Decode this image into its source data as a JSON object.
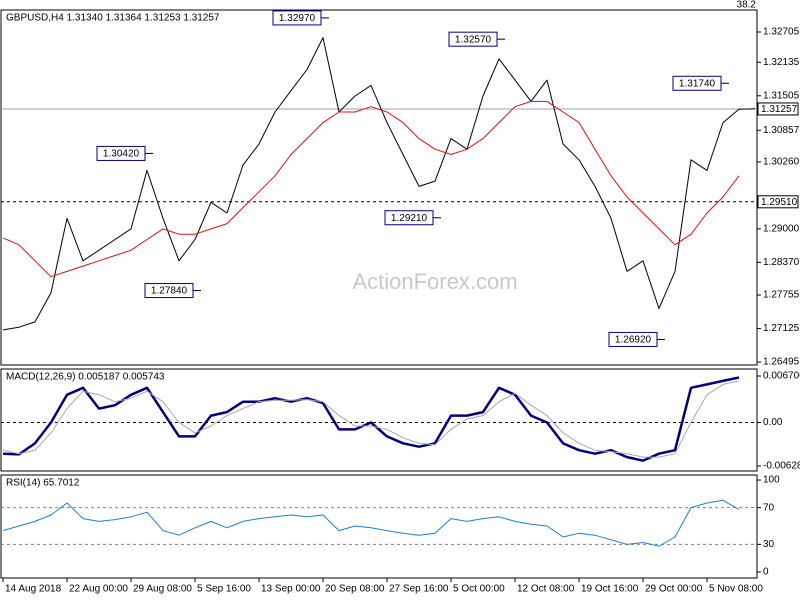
{
  "chart_data": [
    {
      "type": "line",
      "title": "GBPUSD,H4  1.31340 1.31364 1.31253 1.31257",
      "watermark": "ActionForex.com",
      "fibo_label": "38.2",
      "categories": [
        "14 Aug 2018",
        null,
        null,
        null,
        "22 Aug 00:00",
        null,
        null,
        null,
        "29 Aug 08:00",
        null,
        null,
        null,
        "5 Sep 16:00",
        null,
        null,
        null,
        "13 Sep 00:00",
        null,
        null,
        null,
        "20 Sep 08:00",
        null,
        null,
        null,
        "27 Sep 16:00",
        null,
        null,
        null,
        "5 Oct 00:00",
        null,
        null,
        null,
        "12 Oct 08:00",
        null,
        null,
        null,
        "19 Oct 16:00",
        null,
        null,
        null,
        "29 Oct 00:00",
        null,
        null,
        null,
        "5 Nov 08:00",
        null,
        null,
        null
      ],
      "series": [
        {
          "name": "Close",
          "color": "#000000",
          "width": 1,
          "values": [
            1.271,
            1.2715,
            1.2725,
            1.278,
            1.292,
            1.284,
            1.286,
            1.288,
            1.29,
            1.301,
            1.292,
            1.284,
            1.288,
            1.295,
            1.293,
            1.302,
            1.306,
            1.312,
            1.316,
            1.32,
            1.326,
            1.312,
            1.315,
            1.317,
            1.31,
            1.304,
            1.298,
            1.299,
            1.307,
            1.305,
            1.315,
            1.322,
            1.318,
            1.314,
            1.318,
            1.306,
            1.303,
            1.298,
            1.292,
            1.282,
            1.284,
            1.275,
            1.282,
            1.303,
            1.301,
            1.31,
            1.3125,
            1.3126
          ]
        },
        {
          "name": "MA",
          "color": "#e01010",
          "width": 1,
          "values": [
            1.2883,
            1.287,
            1.284,
            1.281,
            1.282,
            1.283,
            1.284,
            1.285,
            1.286,
            1.288,
            1.29,
            1.289,
            1.289,
            1.29,
            1.291,
            1.294,
            1.297,
            1.3,
            1.304,
            1.307,
            1.31,
            1.312,
            1.312,
            1.313,
            1.312,
            1.31,
            1.307,
            1.305,
            1.304,
            1.305,
            1.307,
            1.31,
            1.313,
            1.314,
            1.314,
            1.312,
            1.31,
            1.305,
            1.3,
            1.296,
            1.293,
            1.29,
            1.287,
            1.289,
            1.293,
            1.296,
            1.3,
            null
          ]
        }
      ],
      "ylim": [
        1.26439,
        1.33119
      ],
      "yticks": [
        {
          "value": 1.32705,
          "label": "1.32705"
        },
        1.32135,
        1.31505,
        1.30857,
        {
          "value": 1.3026,
          "label": "1.30260"
        },
        {
          "value": 1.29,
          "label": "1.29000"
        },
        {
          "value": 1.2837,
          "label": "1.28370"
        },
        1.27755,
        1.27125,
        1.26495
      ],
      "levels": [
        {
          "value": 1.31257,
          "style": "solid",
          "color": "#a0a0a0",
          "axis_tag": true
        },
        {
          "value": 1.2951,
          "label": "1.29510",
          "style": "dashed",
          "color": "#000000",
          "axis_tag": true
        }
      ],
      "annotations": [
        {
          "value": 1.3297,
          "label": "1.32970",
          "index": 20
        },
        {
          "value": 1.3257,
          "label": "1.32570",
          "index": 31
        },
        {
          "value": 1.3174,
          "label": "1.31740",
          "index": 45
        },
        {
          "value": 1.3042,
          "label": "1.30420",
          "index": 9
        },
        {
          "value": 1.2921,
          "label": "1.29210",
          "index": 27
        },
        {
          "value": 1.2784,
          "label": "1.27840",
          "index": 12
        },
        {
          "value": 1.2692,
          "label": "1.26920",
          "index": 41
        }
      ]
    },
    {
      "type": "line",
      "title": "MACD(12,26,9) 0.005187 0.005743",
      "series": [
        {
          "name": "MACD",
          "color": "#000080",
          "width": 2.5,
          "values": [
            -0.0045,
            -0.0046,
            -0.003,
            0.0,
            0.004,
            0.005,
            0.002,
            0.0025,
            0.004,
            0.005,
            0.0015,
            -0.002,
            -0.002,
            0.001,
            0.0015,
            0.003,
            0.003,
            0.0035,
            0.003,
            0.0035,
            0.0028,
            -0.001,
            -0.001,
            0.0,
            -0.002,
            -0.003,
            -0.0035,
            -0.003,
            0.001,
            0.001,
            0.0015,
            0.005,
            0.004,
            0.001,
            0.0,
            -0.003,
            -0.004,
            -0.0045,
            -0.004,
            -0.005,
            -0.0055,
            -0.0045,
            -0.004,
            0.005,
            0.0055,
            0.006,
            0.0065,
            null
          ]
        },
        {
          "name": "Signal",
          "color": "#a8a8a8",
          "width": 1,
          "values": [
            -0.004,
            -0.0045,
            -0.004,
            -0.0015,
            0.002,
            0.0045,
            0.004,
            0.003,
            0.0035,
            0.0045,
            0.003,
            0.0,
            -0.0015,
            -0.0005,
            0.001,
            0.002,
            0.003,
            0.0032,
            0.0032,
            0.0033,
            0.003,
            0.001,
            -0.0005,
            -0.0005,
            -0.001,
            -0.0022,
            -0.003,
            -0.0032,
            -0.001,
            0.0005,
            0.001,
            0.003,
            0.0042,
            0.0025,
            0.001,
            -0.0015,
            -0.003,
            -0.004,
            -0.0042,
            -0.0045,
            -0.005,
            -0.005,
            -0.0045,
            0.0,
            0.004,
            0.0055,
            0.006,
            null
          ]
        }
      ],
      "ylim": [
        -0.007,
        0.00772
      ],
      "yticks": [
        0.006706,
        {
          "value": 0,
          "label": "0.00"
        },
        -0.00628
      ],
      "levels": [
        {
          "value": 0,
          "style": "dashed",
          "color": "#000000"
        }
      ]
    },
    {
      "type": "line",
      "title": "RSI(14) 65.7012",
      "series": [
        {
          "name": "RSI",
          "color": "#1e7fd8",
          "width": 1,
          "values": [
            45,
            50,
            55,
            62,
            75,
            58,
            55,
            57,
            60,
            65,
            45,
            40,
            48,
            55,
            48,
            55,
            58,
            60,
            62,
            60,
            62,
            45,
            50,
            48,
            45,
            42,
            40,
            42,
            58,
            55,
            58,
            60,
            55,
            52,
            50,
            38,
            42,
            40,
            35,
            30,
            32,
            28,
            38,
            70,
            75,
            78,
            68,
            null
          ]
        }
      ],
      "ylim": [
        -6.6,
        105.5
      ],
      "yticks": [
        100,
        70,
        30,
        0
      ],
      "levels": [
        {
          "value": 70,
          "style": "dashed",
          "color": "#808080"
        },
        {
          "value": 30,
          "style": "dashed",
          "color": "#808080"
        }
      ]
    }
  ]
}
